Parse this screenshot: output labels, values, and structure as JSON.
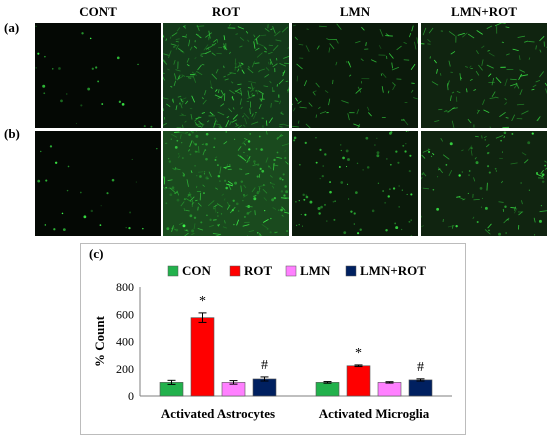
{
  "columns": [
    "CONT",
    "ROT",
    "LMN",
    "LMN+ROT"
  ],
  "rows": [
    "(a)",
    "(b)"
  ],
  "panel_label": "(c)",
  "colors": {
    "CON": "#22b14c",
    "ROT": "#ff0000",
    "LMN": "#ff80ff",
    "LMN+ROT": "#002060"
  },
  "chart_data": {
    "type": "bar",
    "categories": [
      "Activated Astrocytes",
      "Activated Microglia"
    ],
    "series": [
      {
        "name": "CON",
        "values": [
          100,
          100
        ],
        "errors": [
          15,
          6
        ]
      },
      {
        "name": "ROT",
        "values": [
          575,
          222
        ],
        "errors": [
          35,
          6
        ]
      },
      {
        "name": "LMN",
        "values": [
          100,
          100
        ],
        "errors": [
          13,
          5
        ]
      },
      {
        "name": "LMN+ROT",
        "values": [
          125,
          118
        ],
        "errors": [
          15,
          8
        ]
      }
    ],
    "annotations": [
      {
        "category": "Activated Astrocytes",
        "series": "ROT",
        "text": "*"
      },
      {
        "category": "Activated Astrocytes",
        "series": "LMN+ROT",
        "text": "#"
      },
      {
        "category": "Activated Microglia",
        "series": "ROT",
        "text": "*"
      },
      {
        "category": "Activated Microglia",
        "series": "LMN+ROT",
        "text": "#"
      }
    ],
    "ylabel": "% Count",
    "xlabel": "",
    "ylim": [
      0,
      800
    ],
    "yticks": [
      0,
      200,
      400,
      600,
      800
    ],
    "grid": false,
    "legend_position": "top"
  }
}
